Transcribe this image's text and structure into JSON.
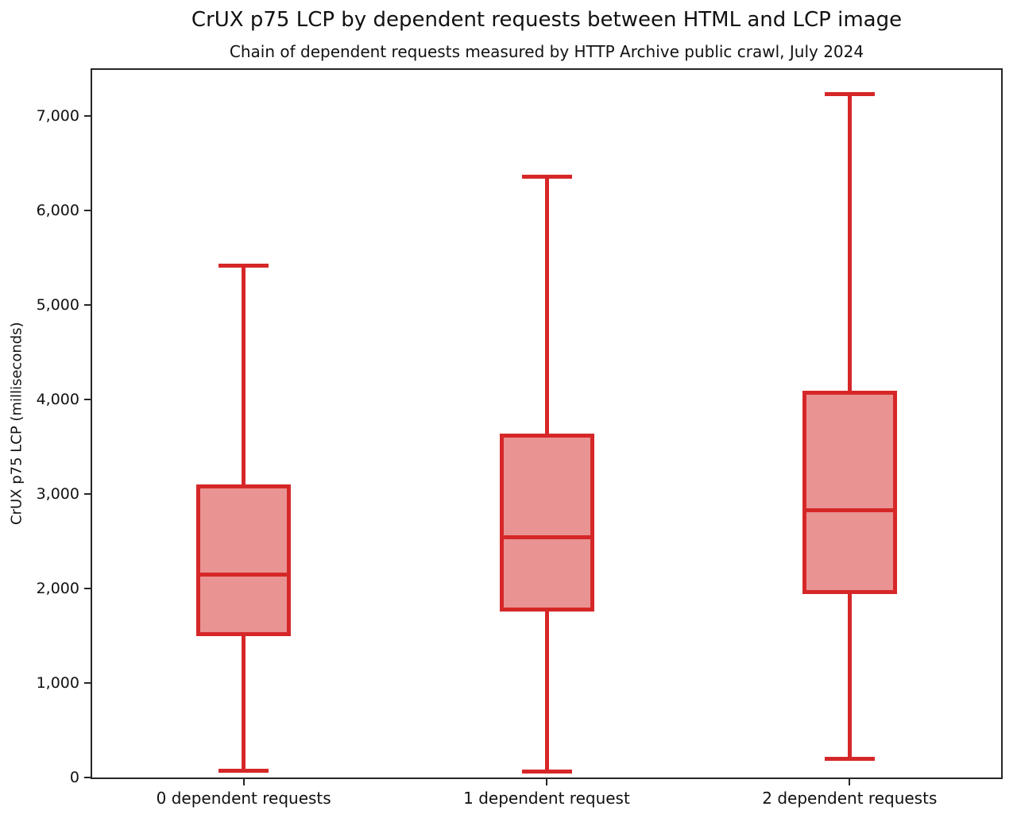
{
  "title": "CrUX p75 LCP by dependent requests between HTML and LCP image",
  "subtitle": "Chain of dependent requests measured by HTTP Archive public crawl, July 2024",
  "chart_data": {
    "type": "box",
    "title": "CrUX p75 LCP by dependent requests between HTML and LCP image",
    "subtitle": "Chain of dependent requests measured by HTTP Archive public crawl, July 2024",
    "xlabel": "",
    "ylabel": "CrUX p75 LCP (milliseconds)",
    "ylim": [
      0,
      7490
    ],
    "grid": false,
    "legend": false,
    "yticks": [
      {
        "value": 0,
        "label": "0"
      },
      {
        "value": 1000,
        "label": "1,000"
      },
      {
        "value": 2000,
        "label": "2,000"
      },
      {
        "value": 3000,
        "label": "3,000"
      },
      {
        "value": 4000,
        "label": "4,000"
      },
      {
        "value": 5000,
        "label": "5,000"
      },
      {
        "value": 6000,
        "label": "6,000"
      },
      {
        "value": 7000,
        "label": "7,000"
      }
    ],
    "categories": [
      "0 dependent requests",
      "1 dependent request",
      "2 dependent requests"
    ],
    "series": [
      {
        "category": "0 dependent requests",
        "whisker_low": 70,
        "q1": 1520,
        "median": 2150,
        "q3": 3080,
        "whisker_high": 5420
      },
      {
        "category": "1 dependent request",
        "whisker_low": 60,
        "q1": 1780,
        "median": 2540,
        "q3": 3620,
        "whisker_high": 6360
      },
      {
        "category": "2 dependent requests",
        "whisker_low": 200,
        "q1": 1960,
        "median": 2830,
        "q3": 4070,
        "whisker_high": 7230
      }
    ],
    "colors": {
      "box_edge": "#d62728",
      "box_fill": "#ea9393",
      "axis": "#262626",
      "text": "#111111",
      "background": "#ffffff"
    }
  }
}
